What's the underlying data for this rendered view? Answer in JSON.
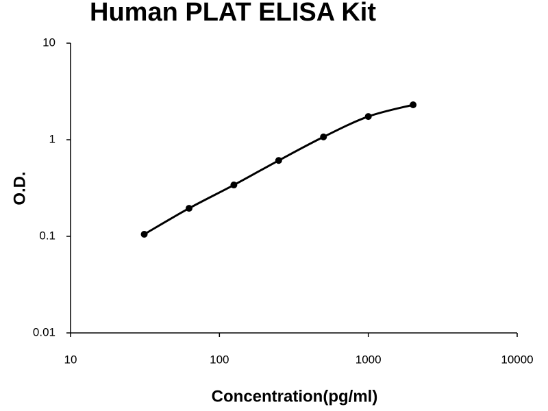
{
  "chart_data": {
    "type": "scatter",
    "title": "Human PLAT ELISA Kit",
    "x_label": "Concentration(pg/ml)",
    "y_label": "O.D.",
    "x": [
      31.25,
      62.5,
      125,
      250,
      500,
      1000,
      2000
    ],
    "series": [
      {
        "color": "#000000",
        "values": [
          0.105,
          0.195,
          0.34,
          0.61,
          1.07,
          1.74,
          2.3
        ]
      }
    ],
    "line": "smooth",
    "x_log": true,
    "y_log": true,
    "xlim": [
      10,
      10000
    ],
    "xticks": [
      10,
      100,
      1000,
      10000
    ],
    "ylim": [
      0.01,
      10
    ],
    "yticks": [
      0.01,
      0.1,
      1,
      10
    ]
  }
}
